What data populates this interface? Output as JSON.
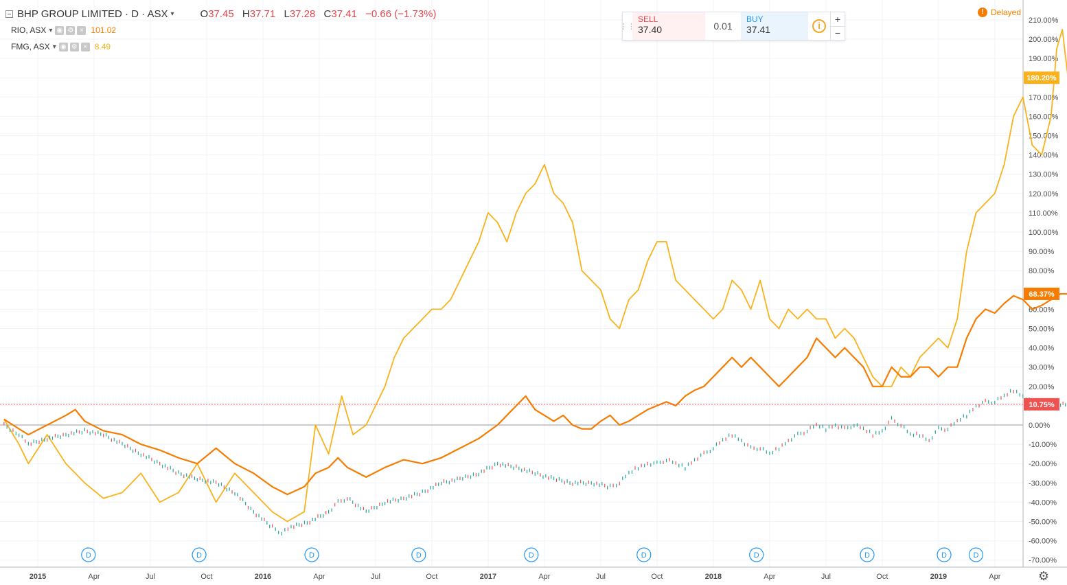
{
  "header": {
    "symbol": "BHP GROUP LIMITED · D · ASX",
    "ohlc": [
      {
        "label": "O",
        "value": "37.45"
      },
      {
        "label": "H",
        "value": "37.71"
      },
      {
        "label": "L",
        "value": "37.28"
      },
      {
        "label": "C",
        "value": "37.41"
      }
    ],
    "change": "−0.66 (−1.73%)",
    "compare": [
      {
        "symbol": "RIO, ASX",
        "value": "101.02",
        "color": "#f57c00"
      },
      {
        "symbol": "FMG, ASX",
        "value": "8.49",
        "color": "#f9b21c"
      }
    ]
  },
  "trade": {
    "sell_label": "SELL",
    "sell_price": "37.40",
    "spread": "0.01",
    "buy_label": "BUY",
    "buy_price": "37.41",
    "info_glyph": "i",
    "zoom_in": "+",
    "zoom_out": "−"
  },
  "status": {
    "delayed": "Delayed",
    "icon": "!"
  },
  "toolbar": {
    "settings_icon": "gear-icon",
    "settings_glyph": "⚙"
  },
  "chart_data": {
    "type": "line",
    "ylabel_unit": "%",
    "ylim": [
      -72,
      214
    ],
    "y_ticks": [
      -70,
      -60,
      -50,
      -40,
      -30,
      -20,
      -10,
      0,
      10,
      20,
      30,
      40,
      50,
      60,
      70,
      80,
      90,
      100,
      110,
      120,
      130,
      140,
      150,
      160,
      170,
      180,
      190,
      200,
      210
    ],
    "x_ticks": [
      {
        "label": "2015",
        "month": 0
      },
      {
        "label": "Apr",
        "month": 3
      },
      {
        "label": "Jul",
        "month": 6
      },
      {
        "label": "Oct",
        "month": 9
      },
      {
        "label": "2016",
        "month": 12
      },
      {
        "label": "Apr",
        "month": 15
      },
      {
        "label": "Jul",
        "month": 18
      },
      {
        "label": "Oct",
        "month": 21
      },
      {
        "label": "2017",
        "month": 24
      },
      {
        "label": "Apr",
        "month": 27
      },
      {
        "label": "Jul",
        "month": 30
      },
      {
        "label": "Oct",
        "month": 33
      },
      {
        "label": "2018",
        "month": 36
      },
      {
        "label": "Apr",
        "month": 39
      },
      {
        "label": "Jul",
        "month": 42
      },
      {
        "label": "Oct",
        "month": 45
      },
      {
        "label": "2019",
        "month": 48
      },
      {
        "label": "Apr",
        "month": 51
      }
    ],
    "dividend_months": [
      2.7,
      8.6,
      14.6,
      20.3,
      26.3,
      32.3,
      38.3,
      44.2,
      48.3,
      50.0
    ],
    "dividend_label": "D",
    "series": [
      {
        "name": "FMG, ASX",
        "color": "#f9b21c",
        "last_label": "180.20%",
        "points": [
          [
            -1.8,
            3
          ],
          [
            -1,
            -10
          ],
          [
            -0.5,
            -20
          ],
          [
            0.5,
            -5
          ],
          [
            1.5,
            -20
          ],
          [
            2.5,
            -30
          ],
          [
            3.5,
            -38
          ],
          [
            4.5,
            -35
          ],
          [
            5.5,
            -25
          ],
          [
            6.5,
            -40
          ],
          [
            7.5,
            -35
          ],
          [
            8.5,
            -20
          ],
          [
            9.5,
            -40
          ],
          [
            10.5,
            -25
          ],
          [
            11.5,
            -35
          ],
          [
            12.5,
            -45
          ],
          [
            13.3,
            -50
          ],
          [
            14.2,
            -45
          ],
          [
            14.8,
            0
          ],
          [
            15.5,
            -15
          ],
          [
            16.2,
            15
          ],
          [
            16.8,
            -5
          ],
          [
            17.5,
            0
          ],
          [
            18,
            10
          ],
          [
            18.5,
            20
          ],
          [
            19,
            35
          ],
          [
            19.5,
            45
          ],
          [
            20,
            50
          ],
          [
            20.5,
            55
          ],
          [
            21,
            60
          ],
          [
            21.5,
            60
          ],
          [
            22,
            65
          ],
          [
            22.5,
            75
          ],
          [
            23,
            85
          ],
          [
            23.5,
            95
          ],
          [
            24,
            110
          ],
          [
            24.5,
            105
          ],
          [
            25,
            95
          ],
          [
            25.5,
            110
          ],
          [
            26,
            120
          ],
          [
            26.5,
            125
          ],
          [
            27,
            135
          ],
          [
            27.5,
            120
          ],
          [
            28,
            115
          ],
          [
            28.5,
            105
          ],
          [
            29,
            80
          ],
          [
            29.5,
            75
          ],
          [
            30,
            70
          ],
          [
            30.5,
            55
          ],
          [
            31,
            50
          ],
          [
            31.5,
            65
          ],
          [
            32,
            70
          ],
          [
            32.5,
            85
          ],
          [
            33,
            95
          ],
          [
            33.5,
            95
          ],
          [
            34,
            75
          ],
          [
            34.5,
            70
          ],
          [
            35,
            65
          ],
          [
            35.5,
            60
          ],
          [
            36,
            55
          ],
          [
            36.5,
            60
          ],
          [
            37,
            75
          ],
          [
            37.5,
            70
          ],
          [
            38,
            60
          ],
          [
            38.5,
            75
          ],
          [
            39,
            55
          ],
          [
            39.5,
            50
          ],
          [
            40,
            60
          ],
          [
            40.5,
            55
          ],
          [
            41,
            60
          ],
          [
            41.5,
            55
          ],
          [
            42,
            55
          ],
          [
            42.5,
            45
          ],
          [
            43,
            50
          ],
          [
            43.5,
            45
          ],
          [
            44,
            35
          ],
          [
            44.5,
            25
          ],
          [
            45,
            20
          ],
          [
            45.5,
            20
          ],
          [
            46,
            30
          ],
          [
            46.5,
            25
          ],
          [
            47,
            35
          ],
          [
            47.5,
            40
          ],
          [
            48,
            45
          ],
          [
            48.5,
            40
          ],
          [
            49,
            55
          ],
          [
            49.5,
            90
          ],
          [
            50,
            110
          ],
          [
            50.5,
            115
          ],
          [
            51,
            120
          ],
          [
            51.5,
            135
          ],
          [
            52,
            160
          ],
          [
            52.5,
            170
          ],
          [
            53,
            145
          ],
          [
            53.5,
            140
          ],
          [
            54,
            160
          ],
          [
            54.3,
            195
          ],
          [
            54.6,
            205
          ],
          [
            54.9,
            180
          ]
        ]
      },
      {
        "name": "RIO, ASX",
        "color": "#f57c00",
        "last_label": "68.37%",
        "points": [
          [
            -1.8,
            3
          ],
          [
            -1,
            -2
          ],
          [
            -0.5,
            -5
          ],
          [
            0.5,
            0
          ],
          [
            1.5,
            5
          ],
          [
            2,
            8
          ],
          [
            2.5,
            2
          ],
          [
            3.5,
            -3
          ],
          [
            4.5,
            -5
          ],
          [
            5.5,
            -10
          ],
          [
            6.5,
            -13
          ],
          [
            7.5,
            -17
          ],
          [
            8.5,
            -20
          ],
          [
            9.5,
            -12
          ],
          [
            10.5,
            -20
          ],
          [
            11.5,
            -25
          ],
          [
            12.5,
            -32
          ],
          [
            13.3,
            -36
          ],
          [
            14.2,
            -32
          ],
          [
            14.8,
            -25
          ],
          [
            15.5,
            -22
          ],
          [
            16,
            -17
          ],
          [
            16.5,
            -22
          ],
          [
            17.5,
            -27
          ],
          [
            18.5,
            -22
          ],
          [
            19.5,
            -18
          ],
          [
            20.5,
            -20
          ],
          [
            21.5,
            -17
          ],
          [
            22.5,
            -12
          ],
          [
            23.5,
            -7
          ],
          [
            24.5,
            0
          ],
          [
            25,
            5
          ],
          [
            25.5,
            10
          ],
          [
            26,
            15
          ],
          [
            26.5,
            8
          ],
          [
            27,
            5
          ],
          [
            27.5,
            2
          ],
          [
            28,
            5
          ],
          [
            28.5,
            0
          ],
          [
            29,
            -2
          ],
          [
            29.5,
            -2
          ],
          [
            30,
            2
          ],
          [
            30.5,
            5
          ],
          [
            31,
            0
          ],
          [
            31.5,
            2
          ],
          [
            32,
            5
          ],
          [
            32.5,
            8
          ],
          [
            33,
            10
          ],
          [
            33.5,
            12
          ],
          [
            34,
            10
          ],
          [
            34.5,
            15
          ],
          [
            35,
            18
          ],
          [
            35.5,
            20
          ],
          [
            36,
            25
          ],
          [
            36.5,
            30
          ],
          [
            37,
            35
          ],
          [
            37.5,
            30
          ],
          [
            38,
            35
          ],
          [
            38.5,
            30
          ],
          [
            39,
            25
          ],
          [
            39.5,
            20
          ],
          [
            40,
            25
          ],
          [
            40.5,
            30
          ],
          [
            41,
            35
          ],
          [
            41.5,
            45
          ],
          [
            42,
            40
          ],
          [
            42.5,
            35
          ],
          [
            43,
            40
          ],
          [
            43.5,
            35
          ],
          [
            44,
            30
          ],
          [
            44.5,
            20
          ],
          [
            45,
            20
          ],
          [
            45.5,
            30
          ],
          [
            46,
            25
          ],
          [
            46.5,
            25
          ],
          [
            47,
            30
          ],
          [
            47.5,
            30
          ],
          [
            48,
            25
          ],
          [
            48.5,
            30
          ],
          [
            49,
            30
          ],
          [
            49.5,
            45
          ],
          [
            50,
            55
          ],
          [
            50.5,
            60
          ],
          [
            51,
            58
          ],
          [
            51.5,
            63
          ],
          [
            52,
            67
          ],
          [
            52.5,
            65
          ],
          [
            53,
            60
          ],
          [
            53.5,
            62
          ],
          [
            54,
            65
          ],
          [
            54.5,
            68
          ],
          [
            54.9,
            68
          ]
        ]
      },
      {
        "name": "BHP GROUP LIMITED",
        "color": "#26a69a",
        "down_color": "#ef5350",
        "last_label": "10.75%",
        "points": [
          [
            -1.8,
            0
          ],
          [
            -1,
            -5
          ],
          [
            -0.5,
            -10
          ],
          [
            0.5,
            -7
          ],
          [
            1.5,
            -5
          ],
          [
            2.5,
            -3
          ],
          [
            3.5,
            -5
          ],
          [
            4.5,
            -10
          ],
          [
            5.5,
            -15
          ],
          [
            6.5,
            -20
          ],
          [
            7.5,
            -25
          ],
          [
            8.5,
            -28
          ],
          [
            9.5,
            -30
          ],
          [
            10.5,
            -35
          ],
          [
            11.5,
            -45
          ],
          [
            12.5,
            -53
          ],
          [
            13,
            -56
          ],
          [
            13.5,
            -53
          ],
          [
            14.5,
            -50
          ],
          [
            15.5,
            -45
          ],
          [
            16,
            -40
          ],
          [
            16.5,
            -38
          ],
          [
            17.5,
            -45
          ],
          [
            18.5,
            -40
          ],
          [
            19.5,
            -38
          ],
          [
            20.5,
            -35
          ],
          [
            21.5,
            -30
          ],
          [
            22.5,
            -28
          ],
          [
            23.5,
            -25
          ],
          [
            24.5,
            -20
          ],
          [
            25.5,
            -22
          ],
          [
            26.5,
            -25
          ],
          [
            27.5,
            -28
          ],
          [
            28.5,
            -30
          ],
          [
            29.5,
            -30
          ],
          [
            30.5,
            -32
          ],
          [
            31,
            -30
          ],
          [
            31.5,
            -25
          ],
          [
            32,
            -22
          ],
          [
            32.5,
            -20
          ],
          [
            33,
            -20
          ],
          [
            33.5,
            -18
          ],
          [
            34,
            -20
          ],
          [
            34.5,
            -22
          ],
          [
            35,
            -18
          ],
          [
            35.5,
            -15
          ],
          [
            36,
            -12
          ],
          [
            36.5,
            -8
          ],
          [
            37,
            -5
          ],
          [
            37.5,
            -8
          ],
          [
            38,
            -12
          ],
          [
            38.5,
            -12
          ],
          [
            39,
            -15
          ],
          [
            39.5,
            -12
          ],
          [
            40,
            -8
          ],
          [
            40.5,
            -5
          ],
          [
            41,
            -3
          ],
          [
            41.5,
            0
          ],
          [
            42,
            -2
          ],
          [
            42.5,
            0
          ],
          [
            43,
            -2
          ],
          [
            43.5,
            0
          ],
          [
            44,
            -2
          ],
          [
            44.5,
            -5
          ],
          [
            45,
            -3
          ],
          [
            45.5,
            3
          ],
          [
            46,
            0
          ],
          [
            46.5,
            -5
          ],
          [
            47,
            -5
          ],
          [
            47.5,
            -8
          ],
          [
            48,
            -2
          ],
          [
            48.5,
            -2
          ],
          [
            49,
            2
          ],
          [
            49.5,
            5
          ],
          [
            50,
            10
          ],
          [
            50.5,
            12
          ],
          [
            51,
            12
          ],
          [
            51.5,
            15
          ],
          [
            52,
            18
          ],
          [
            52.5,
            15
          ],
          [
            53,
            12
          ],
          [
            53.5,
            10
          ],
          [
            54,
            12
          ],
          [
            54.5,
            11
          ],
          [
            54.9,
            10.75
          ]
        ]
      }
    ]
  }
}
